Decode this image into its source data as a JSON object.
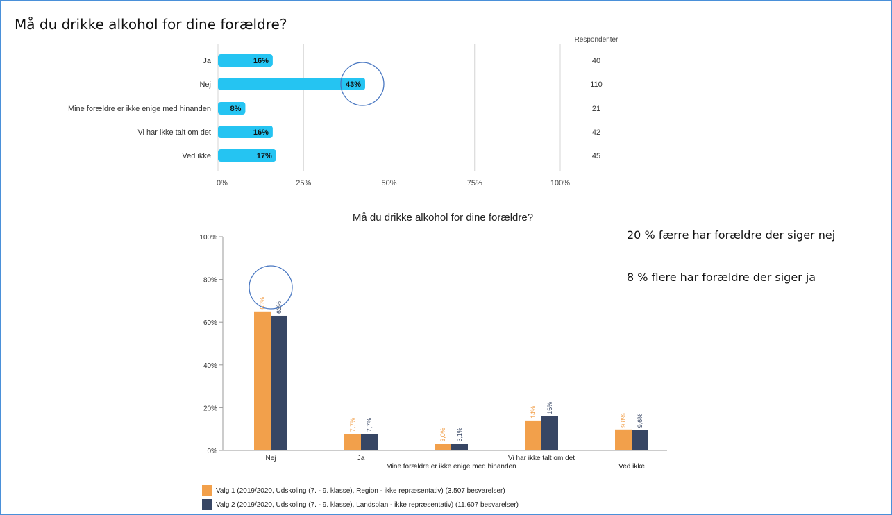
{
  "page_title": "Må du drikke alkohol for dine forældre?",
  "notes": [
    "20 % færre har forældre der siger nej",
    "8 % flere har forældre der siger ja"
  ],
  "colors": {
    "bar": "#25c4f2",
    "series1": "#f2a04b",
    "series2": "#374664",
    "circle": "#4a78c2"
  },
  "chart_data": [
    {
      "type": "bar",
      "orientation": "horizontal",
      "title": "Må du drikke alkohol for dine forældre?",
      "categories": [
        "Ja",
        "Nej",
        "Mine forældre er ikke enige med hinanden",
        "Vi har ikke talt om det",
        "Ved ikke"
      ],
      "values": [
        16,
        43,
        8,
        16,
        17
      ],
      "value_labels": [
        "16%",
        "43%",
        "8%",
        "16%",
        "17%"
      ],
      "respondents_label": "Respondenter",
      "respondents": [
        "40",
        "110",
        "21",
        "42",
        "45"
      ],
      "xticks": [
        "0%",
        "25%",
        "50%",
        "75%",
        "100%"
      ],
      "xlim": [
        0,
        100
      ],
      "grid": true
    },
    {
      "type": "bar",
      "orientation": "vertical",
      "title": "Må du drikke alkohol for dine forældre?",
      "categories": [
        "Nej",
        "Ja",
        "Mine forældre er ikke enige med hinanden",
        "Vi har ikke talt om det",
        "Ved ikke"
      ],
      "series": [
        {
          "name": "Valg 1 (2019/2020, Udskoling (7. - 9. klasse), Region - ikke repræsentativ) (3.507 besvarelser)",
          "values": [
            65,
            7.7,
            3.0,
            14,
            9.8
          ],
          "labels": [
            "65%",
            "7,7%",
            "3,0%",
            "14%",
            "9,8%"
          ]
        },
        {
          "name": "Valg 2 (2019/2020, Udskoling (7. - 9. klasse), Landsplan - ikke repræsentativ) (11.607 besvarelser)",
          "values": [
            63,
            7.7,
            3.1,
            16,
            9.6
          ],
          "labels": [
            "63%",
            "7,7%",
            "3,1%",
            "16%",
            "9,6%"
          ]
        }
      ],
      "yticks": [
        "0%",
        "20%",
        "40%",
        "60%",
        "80%",
        "100%"
      ],
      "ylim": [
        0,
        100
      ],
      "legend": "bottom-left"
    }
  ]
}
